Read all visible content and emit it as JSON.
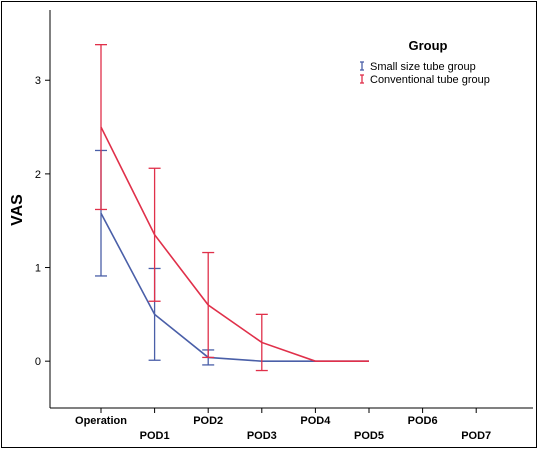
{
  "chart_data": {
    "type": "line",
    "ylabel": "VAS",
    "xlabel": "",
    "categories": [
      "Operation",
      "POD1",
      "POD2",
      "POD3",
      "POD4",
      "POD5",
      "POD6",
      "POD7"
    ],
    "ylim": [
      -0.5,
      3.75
    ],
    "yticks": [
      0,
      1,
      2,
      3
    ],
    "grid": false,
    "legend": {
      "title": "Group",
      "placement": "top-right"
    },
    "series": [
      {
        "name": "Small size tube group",
        "color": "#4a5fa8",
        "values": [
          1.58,
          0.5,
          0.04,
          0.0,
          0.0,
          0.0,
          null,
          null
        ],
        "error_low": [
          0.91,
          0.01,
          -0.04,
          null,
          null,
          null,
          null,
          null
        ],
        "error_high": [
          2.25,
          0.99,
          0.12,
          null,
          null,
          null,
          null,
          null
        ]
      },
      {
        "name": "Conventional tube group",
        "color": "#e0304a",
        "values": [
          2.5,
          1.35,
          0.6,
          0.2,
          0.0,
          0.0,
          null,
          null
        ],
        "error_low": [
          1.62,
          0.64,
          0.04,
          -0.1,
          null,
          null,
          null,
          null
        ],
        "error_high": [
          3.38,
          2.06,
          1.16,
          0.5,
          null,
          null,
          null,
          null
        ]
      }
    ]
  }
}
